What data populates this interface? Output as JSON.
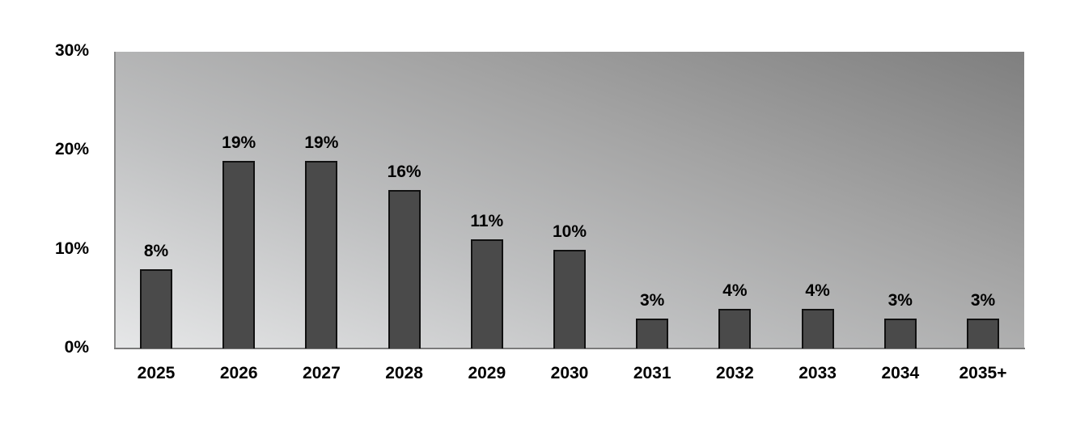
{
  "chart_data": {
    "type": "bar",
    "title": "",
    "xlabel": "",
    "ylabel": "",
    "ylim": [
      0,
      30
    ],
    "y_ticks": [
      "0%",
      "10%",
      "20%",
      "30%"
    ],
    "grid": false,
    "legend": null,
    "categories": [
      "2025",
      "2026",
      "2027",
      "2028",
      "2029",
      "2030",
      "2031",
      "2032",
      "2033",
      "2034",
      "2035+"
    ],
    "values": [
      8,
      19,
      19,
      16,
      11,
      10,
      3,
      4,
      4,
      3,
      3
    ],
    "value_labels": [
      "8%",
      "19%",
      "19%",
      "16%",
      "11%",
      "10%",
      "3%",
      "4%",
      "4%",
      "3%",
      "3%"
    ],
    "colors": {
      "bar": "#4a4a4a",
      "bar_border": "#111111",
      "background_light": "#e6e7e8",
      "background_dark": "#7f7f7f"
    }
  }
}
